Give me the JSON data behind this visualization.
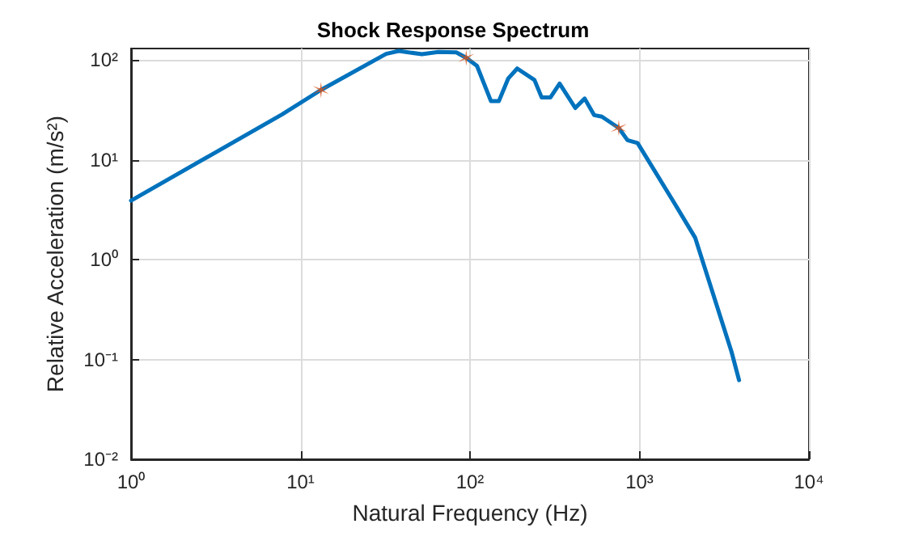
{
  "chart_data": {
    "type": "line",
    "title": "Shock Response Spectrum",
    "xlabel": "Natural Frequency (Hz)",
    "ylabel": "Relative Acceleration (m/s²)",
    "log": "xy",
    "grid": true,
    "marker": "none",
    "line_style": "solid",
    "xlim": [
      1,
      10000
    ],
    "ylim": [
      0.01,
      130
    ],
    "xticks": [
      {
        "value": 1,
        "label": "10⁰"
      },
      {
        "value": 10,
        "label": "10¹"
      },
      {
        "value": 100,
        "label": "10²"
      },
      {
        "value": 1000,
        "label": "10³"
      },
      {
        "value": 10000,
        "label": "10⁴"
      }
    ],
    "yticks": [
      {
        "value": 0.01,
        "label": "10⁻²"
      },
      {
        "value": 0.1,
        "label": "10⁻¹"
      },
      {
        "value": 1,
        "label": "10⁰"
      },
      {
        "value": 10,
        "label": "10¹"
      },
      {
        "value": 100,
        "label": "10²"
      }
    ],
    "series": [
      {
        "color": "#0072bd",
        "x": [
          1,
          7.8,
          13.2,
          32,
          38,
          52,
          65,
          83,
          95,
          110,
          133,
          148,
          168,
          190,
          240,
          265,
          298,
          338,
          418,
          475,
          540,
          600,
          755,
          850,
          975,
          1560,
          2130,
          3490,
          3870
        ],
        "values": [
          3.9,
          28.5,
          50,
          115,
          123,
          114,
          120,
          119,
          105,
          87,
          38.6,
          38.6,
          65,
          82,
          63,
          42,
          42,
          58,
          33,
          41,
          28,
          27,
          20.8,
          15.7,
          14.7,
          4.0,
          1.66,
          0.12,
          0.062
        ]
      },
      {
        "type": "scatter",
        "marker": "cross",
        "color": "#d95319",
        "x": [
          13.2,
          95,
          755
        ],
        "values": [
          50,
          105,
          20.8
        ]
      }
    ]
  }
}
